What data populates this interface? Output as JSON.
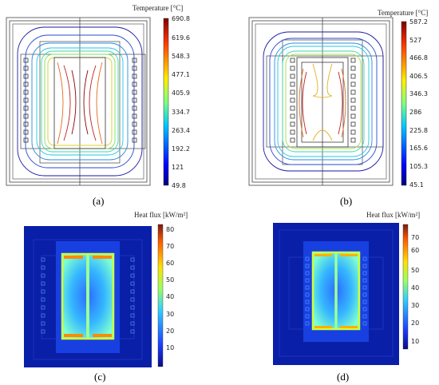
{
  "panel_a": {
    "caption": "(a)",
    "colorbar_title": "Temperature [°C]",
    "ticks": [
      "690.8",
      "619.6",
      "548.3",
      "477.1",
      "405.9",
      "334.7",
      "263.4",
      "192.2",
      "121",
      "49.8"
    ]
  },
  "panel_b": {
    "caption": "(b)",
    "colorbar_title": "Temperature [°C]",
    "ticks": [
      "587.2",
      "527",
      "466.8",
      "406.5",
      "346.3",
      "286",
      "225.8",
      "165.6",
      "105.3",
      "45.1"
    ]
  },
  "panel_c": {
    "caption": "(c)",
    "colorbar_title": "Heat flux [kW/m²]",
    "ticks": [
      "80",
      "70",
      "60",
      "50",
      "40",
      "30",
      "20",
      "10"
    ]
  },
  "panel_d": {
    "caption": "(d)",
    "colorbar_title": "Heat flux [kW/m²]",
    "ticks": [
      "70",
      "60",
      "50",
      "40",
      "30",
      "20",
      "10"
    ]
  },
  "colors": {
    "contour_hot": "#8b0000",
    "contour_cold": "#1a1aa0",
    "heat_background": "#0a1fa8"
  }
}
